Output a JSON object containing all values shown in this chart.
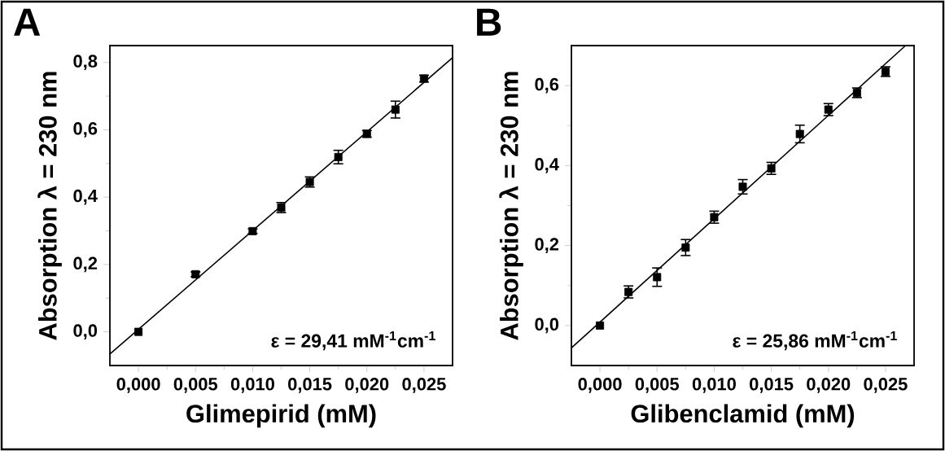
{
  "chart_data": [
    {
      "type": "scatter",
      "title": "A",
      "xlabel": "Glimepirid (mM)",
      "ylabel": "Absorption λ = 230 nm",
      "xlim": [
        -0.0025,
        0.0275
      ],
      "ylim": [
        -0.1,
        0.85
      ],
      "xticks": [
        {
          "value": 0,
          "label": "0,000"
        },
        {
          "value": 0.005,
          "label": "0,005"
        },
        {
          "value": 0.01,
          "label": "0,010"
        },
        {
          "value": 0.015,
          "label": "0,015"
        },
        {
          "value": 0.02,
          "label": "0,020"
        },
        {
          "value": 0.025,
          "label": "0,025"
        }
      ],
      "yticks": [
        {
          "value": 0,
          "label": "0,0"
        },
        {
          "value": 0.2,
          "label": "0,2"
        },
        {
          "value": 0.4,
          "label": "0,4"
        },
        {
          "value": 0.6,
          "label": "0,6"
        },
        {
          "value": 0.8,
          "label": "0,8"
        }
      ],
      "series": [
        {
          "marker": "square",
          "color": "#000000",
          "x": [
            0,
            0.005,
            0.01,
            0.0125,
            0.015,
            0.0175,
            0.02,
            0.0225,
            0.025
          ],
          "values": [
            0,
            0.171,
            0.299,
            0.369,
            0.445,
            0.519,
            0.588,
            0.66,
            0.752
          ],
          "errors": [
            null,
            0.007,
            0.007,
            0.015,
            0.015,
            0.02,
            0.01,
            0.025,
            0.01
          ]
        },
        {
          "type": "line",
          "color": "#000000",
          "x": [
            -0.0025,
            0.0275
          ],
          "values": [
            -0.066,
            0.814
          ]
        }
      ],
      "annotations": [
        "ε = 29,41 mM$^{-1}$cm$^{-1}$"
      ]
    },
    {
      "type": "scatter",
      "title": "B",
      "xlabel": "Glibenclamid (mM)",
      "ylabel": "Absorption λ = 230 nm",
      "xlim": [
        -0.0025,
        0.0275
      ],
      "ylim": [
        -0.1,
        0.7
      ],
      "xticks": [
        {
          "value": 0,
          "label": "0,000"
        },
        {
          "value": 0.005,
          "label": "0,005"
        },
        {
          "value": 0.01,
          "label": "0,010"
        },
        {
          "value": 0.015,
          "label": "0,015"
        },
        {
          "value": 0.02,
          "label": "0,020"
        },
        {
          "value": 0.025,
          "label": "0,025"
        }
      ],
      "yticks": [
        {
          "value": 0,
          "label": "0,0"
        },
        {
          "value": 0.2,
          "label": "0,2"
        },
        {
          "value": 0.4,
          "label": "0,4"
        },
        {
          "value": 0.6,
          "label": "0,6"
        }
      ],
      "series": [
        {
          "marker": "square",
          "color": "#000000",
          "x": [
            0,
            0.0025,
            0.005,
            0.0075,
            0.01,
            0.0125,
            0.015,
            0.0175,
            0.02,
            0.0225,
            0.025
          ],
          "values": [
            0,
            0.084,
            0.121,
            0.195,
            0.271,
            0.347,
            0.393,
            0.479,
            0.54,
            0.582,
            0.635
          ],
          "errors": [
            null,
            0.015,
            0.023,
            0.02,
            0.015,
            0.018,
            0.015,
            0.022,
            0.015,
            0.012,
            0.012
          ]
        },
        {
          "type": "line",
          "color": "#000000",
          "x": [
            -0.0025,
            0.02675
          ],
          "values": [
            -0.056,
            0.7
          ]
        }
      ],
      "annotations": [
        "ε = 25,86 mM$^{-1}$cm$^{-1}$"
      ]
    }
  ]
}
